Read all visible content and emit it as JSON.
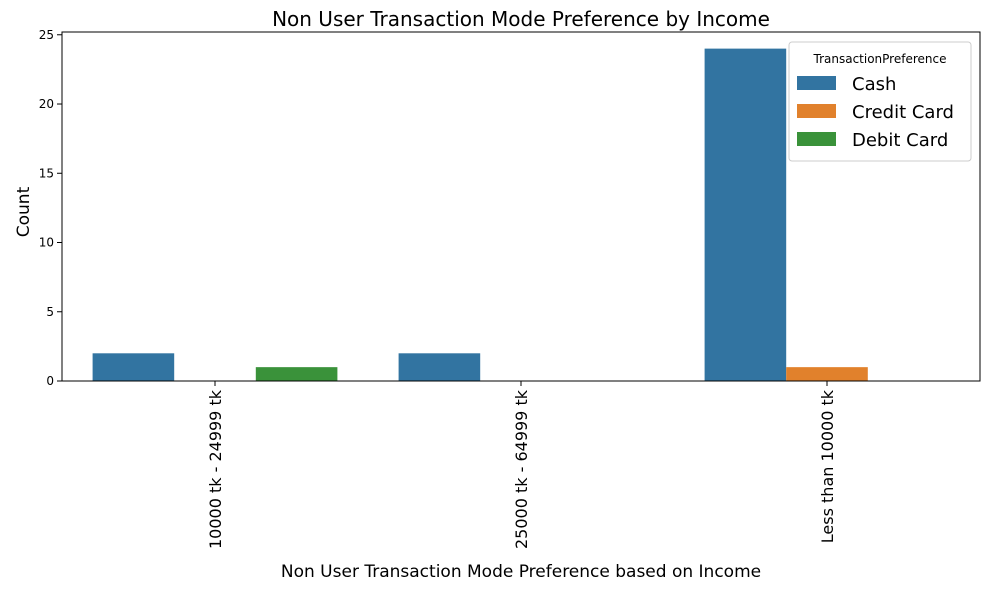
{
  "chart_data": {
    "type": "bar",
    "title": "Non User Transaction Mode Preference by Income",
    "xlabel": "Non User Transaction Mode Preference based on Income",
    "ylabel": "Count",
    "categories": [
      "10000 tk - 24999 tk",
      "25000 tk - 64999 tk",
      "Less than 10000 tk"
    ],
    "series": [
      {
        "name": "Cash",
        "color": "#3274a1",
        "values": [
          2,
          2,
          24
        ]
      },
      {
        "name": "Credit Card",
        "color": "#e1812c",
        "values": [
          0,
          0,
          1
        ]
      },
      {
        "name": "Debit Card",
        "color": "#3a923a",
        "values": [
          1,
          0,
          0
        ]
      }
    ],
    "ylim": [
      0,
      25.2
    ],
    "yticks": [
      0,
      5,
      10,
      15,
      20,
      25
    ],
    "legend": {
      "title": "TransactionPreference",
      "placement": "top-right"
    },
    "grid": false
  }
}
